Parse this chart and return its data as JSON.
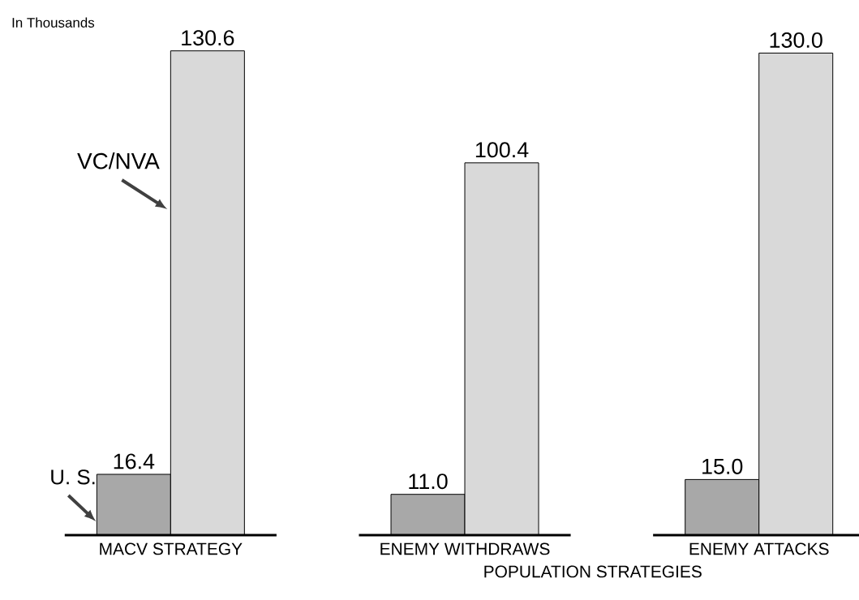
{
  "chart_data": {
    "type": "bar",
    "categories": [
      "MACV STRATEGY",
      "ENEMY WITHDRAWS",
      "ENEMY ATTACKS"
    ],
    "xlabel": "POPULATION STRATEGIES",
    "annotations": [
      "In Thousands"
    ],
    "series": [
      {
        "name": "U. S.",
        "color": "#a8a8a8",
        "values": [
          16.4,
          11.0,
          15.0
        ],
        "value_labels": [
          "16.4",
          "11.0",
          "15.0"
        ]
      },
      {
        "name": "VC/NVA",
        "color": "#d9d9d9",
        "values": [
          130.6,
          100.4,
          130.0
        ],
        "value_labels": [
          "130.6",
          "100.4",
          "130.0"
        ]
      }
    ]
  }
}
